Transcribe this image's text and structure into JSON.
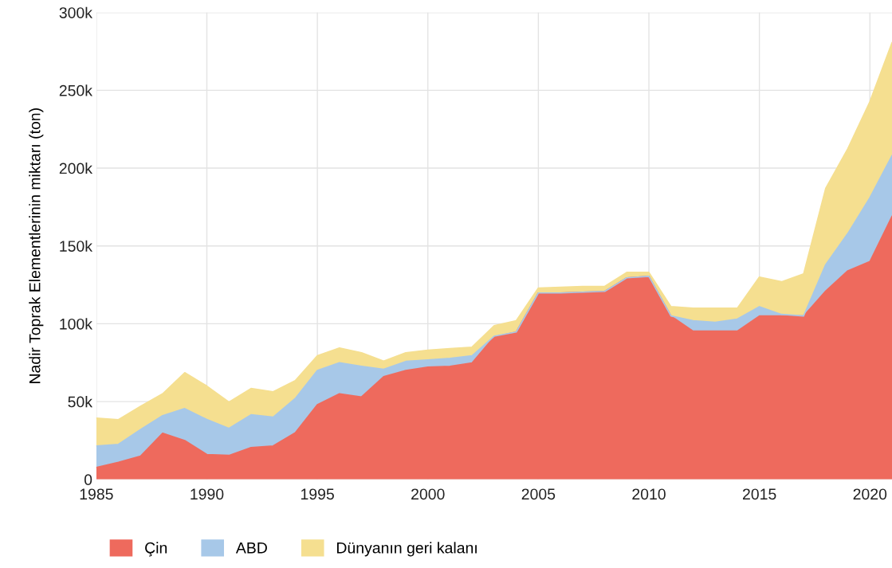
{
  "chart_data": {
    "type": "area",
    "stacked": true,
    "ylabel": "Nadir Toprak Elementlerinin miktarı (ton)",
    "x": [
      1985,
      1986,
      1987,
      1988,
      1989,
      1990,
      1991,
      1992,
      1993,
      1994,
      1995,
      1996,
      1997,
      1998,
      1999,
      2000,
      2001,
      2002,
      2003,
      2004,
      2005,
      2006,
      2007,
      2008,
      2009,
      2010,
      2011,
      2012,
      2013,
      2014,
      2015,
      2016,
      2017,
      2018,
      2019,
      2020,
      2021
    ],
    "series": [
      {
        "name": "Çin",
        "color": "#ee6a5d",
        "values": [
          7700,
          11000,
          15000,
          29700,
          25000,
          16000,
          15400,
          20500,
          21500,
          30000,
          48000,
          55000,
          53000,
          66000,
          70000,
          72200,
          72700,
          74800,
          91600,
          94700,
          119800,
          119800,
          120300,
          120800,
          129500,
          130500,
          105000,
          95300,
          95300,
          95300,
          105000,
          105000,
          105000,
          121000,
          134000,
          140000,
          169000
        ]
      },
      {
        "name": "ABD",
        "color": "#a7c8e8",
        "values": [
          13800,
          11500,
          17000,
          11300,
          20500,
          22500,
          17400,
          21000,
          18500,
          22000,
          22000,
          20000,
          19700,
          4700,
          5800,
          4600,
          5100,
          4600,
          400,
          0,
          0,
          0,
          0,
          0,
          0,
          0,
          0,
          6700,
          5700,
          7700,
          6000,
          1000,
          0,
          17000,
          24000,
          41000,
          39000
        ]
      },
      {
        "name": "Dünyanın geri kalanı",
        "color": "#f5df90",
        "values": [
          17900,
          15900,
          15000,
          14000,
          23100,
          21500,
          16900,
          16900,
          16300,
          11500,
          9400,
          9500,
          8700,
          5300,
          5600,
          6200,
          6200,
          5600,
          6800,
          7300,
          3200,
          3600,
          3700,
          3200,
          3500,
          2500,
          6000,
          8000,
          9000,
          7000,
          19000,
          21000,
          27000,
          49000,
          54500,
          61700,
          72600
        ]
      }
    ],
    "xlim": [
      1985,
      2021
    ],
    "xticks": [
      1985,
      1990,
      1995,
      2000,
      2005,
      2010,
      2015,
      2020
    ],
    "ylim": [
      0,
      300000
    ],
    "yticks": [
      0,
      {
        "value": 50000,
        "label": "50k"
      },
      {
        "value": 100000,
        "label": "100k"
      },
      {
        "value": 150000,
        "label": "150k"
      },
      {
        "value": 200000,
        "label": "200k"
      },
      {
        "value": 250000,
        "label": "250k"
      },
      {
        "value": 300000,
        "label": "300k"
      }
    ],
    "grid": true,
    "legend": "bottom left"
  }
}
